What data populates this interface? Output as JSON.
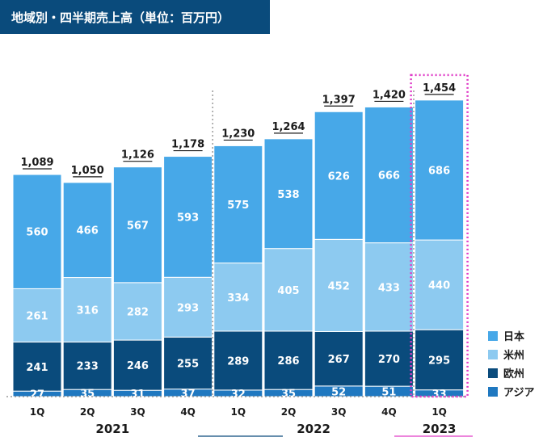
{
  "title": "地域別・四半期売上高（単位：百万円）",
  "chart_data": {
    "type": "bar",
    "stacked": true,
    "title": "地域別・四半期売上高（単位：百万円）",
    "categories": [
      "1Q",
      "2Q",
      "3Q",
      "4Q",
      "1Q",
      "2Q",
      "3Q",
      "4Q",
      "1Q"
    ],
    "years": [
      {
        "label": "2021",
        "start": 0,
        "end": 3
      },
      {
        "label": "2022",
        "start": 4,
        "end": 7
      },
      {
        "label": "2023",
        "start": 8,
        "end": 8
      }
    ],
    "series": [
      {
        "name": "アジア",
        "color": "#1f78c0",
        "values": [
          27,
          35,
          31,
          37,
          32,
          35,
          52,
          51,
          33
        ]
      },
      {
        "name": "欧州",
        "color": "#0a4b7c",
        "values": [
          241,
          233,
          246,
          255,
          289,
          286,
          267,
          270,
          295
        ]
      },
      {
        "name": "米州",
        "color": "#8dcaf0",
        "values": [
          261,
          316,
          282,
          293,
          334,
          405,
          452,
          433,
          440
        ]
      },
      {
        "name": "日本",
        "color": "#47a8e8",
        "values": [
          560,
          466,
          567,
          593,
          575,
          538,
          626,
          666,
          686
        ]
      }
    ],
    "totals": [
      "1,089",
      "1,050",
      "1,126",
      "1,178",
      "1,230",
      "1,264",
      "1,397",
      "1,420",
      "1,454"
    ],
    "legend": [
      "日本",
      "米州",
      "欧州",
      "アジア"
    ],
    "legend_position": "right",
    "grid": false,
    "highlight_index": 8,
    "highlight_color": "#e03cc8"
  }
}
